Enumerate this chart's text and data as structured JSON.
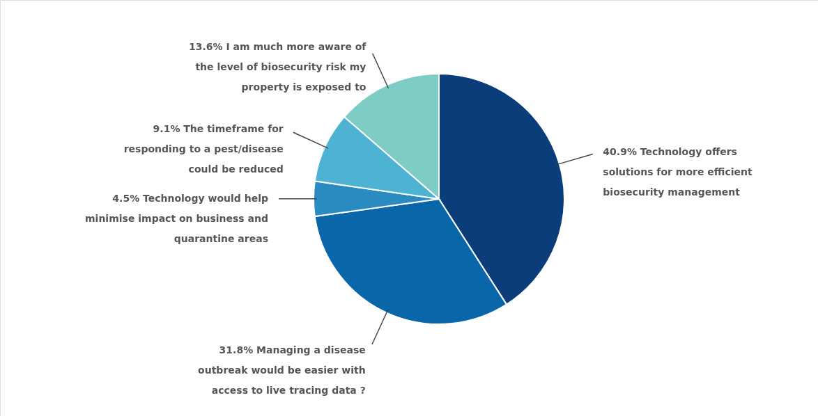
{
  "chart_data": {
    "type": "pie",
    "categories": [
      "Technology offers solutions for more efficient biosecurity management",
      "Managing a disease outbreak would be easier with access to live tracing data ?",
      "Technology would help minimise impact on business and quarantine areas",
      "The timeframe for responding to a pest/disease could be reduced",
      "I am much more aware of the level of biosecurity risk my property is exposed to"
    ],
    "values": [
      40.9,
      31.8,
      4.5,
      9.1,
      13.6
    ],
    "value_labels": [
      "40.9%",
      "31.8%",
      "4.5%",
      "9.1%",
      "13.6%"
    ],
    "colors": [
      "#0a3d7a",
      "#0966a8",
      "#2a8bc0",
      "#4eb3d3",
      "#7ecdc4"
    ]
  }
}
